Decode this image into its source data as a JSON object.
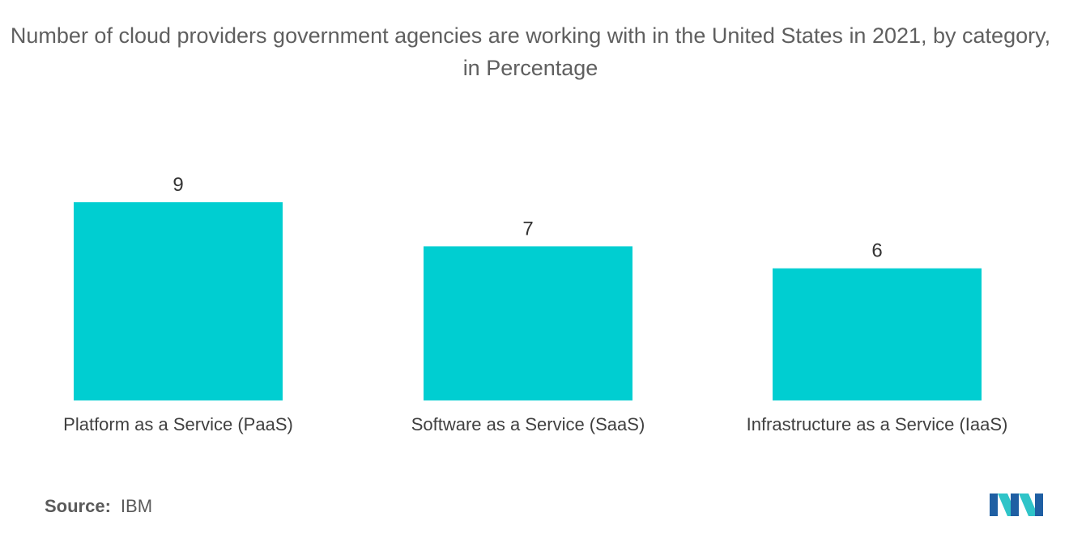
{
  "title": "Number of cloud providers government agencies are working with in the United States in 2021, by category, in Percentage",
  "source": {
    "label": "Source:",
    "value": "IBM"
  },
  "colors": {
    "bar": "#00CED1",
    "logo_dark": "#1f5fa3",
    "logo_light": "#2fc4c8"
  },
  "chart_data": {
    "type": "bar",
    "title": "Number of cloud providers government agencies are working with in the United States in 2021, by category, in Percentage",
    "categories": [
      "Platform as a Service (PaaS)",
      "Software as a Service (SaaS)",
      "Infrastructure as a Service (IaaS)"
    ],
    "values": [
      9,
      7,
      6
    ],
    "xlabel": "",
    "ylabel": "",
    "ylim": [
      0,
      9
    ],
    "grid": false,
    "legend": "none"
  }
}
